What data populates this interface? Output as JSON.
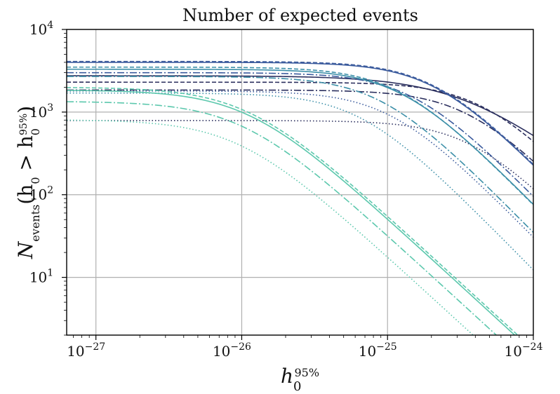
{
  "chart_data": {
    "type": "line",
    "title": "Number of expected events",
    "xscale": "log",
    "yscale": "log",
    "xlim": [
      6.3e-28,
      1e-24
    ],
    "ylim": [
      2,
      10000
    ],
    "xlabel": {
      "base": "h",
      "sub": "0",
      "sup": "95%"
    },
    "ylabel": {
      "prefix": "N",
      "sub": "events",
      "body": "(h",
      "sub2": "0",
      "gt": " > h",
      "sub3": "0",
      "sup3": "95%",
      "close": ")"
    },
    "xticks": [
      {
        "value": 1e-27,
        "base": "10",
        "exp": "−27"
      },
      {
        "value": 1e-26,
        "base": "10",
        "exp": "−26"
      },
      {
        "value": 1e-25,
        "base": "10",
        "exp": "−25"
      },
      {
        "value": 1e-24,
        "base": "10",
        "exp": "−24"
      }
    ],
    "yticks": [
      {
        "value": 10,
        "base": "10",
        "exp": "1"
      },
      {
        "value": 100,
        "base": "10",
        "exp": "2"
      },
      {
        "value": 1000,
        "base": "10",
        "exp": "3"
      },
      {
        "value": 10000,
        "base": "10",
        "exp": "4"
      }
    ],
    "grid": true,
    "series": [
      {
        "name": "a-solid",
        "style": "solid",
        "color": "#2b2f5e",
        "N": 2750,
        "h50": 3.4e-25,
        "slope": 1.35
      },
      {
        "name": "a-dashed",
        "style": "dashed",
        "color": "#2b2f5e",
        "N": 2300,
        "h50": 4.5e-25,
        "slope": 1.8
      },
      {
        "name": "a-dashdot",
        "style": "dashdot",
        "color": "#2b2f5e",
        "N": 1850,
        "h50": 3.6e-25,
        "slope": 1.8
      },
      {
        "name": "a-dotted",
        "style": "dotted",
        "color": "#2b2f5e",
        "N": 790,
        "h50": 3.8e-25,
        "slope": 1.8
      },
      {
        "name": "b-solid",
        "style": "solid",
        "color": "#3b5b9d",
        "N": 4000,
        "h50": 2.1e-25,
        "slope": 1.8
      },
      {
        "name": "b-dashed",
        "style": "dashed",
        "color": "#3b5b9d",
        "N": 4100,
        "h50": 2.1e-25,
        "slope": 1.8
      },
      {
        "name": "b-dashdot",
        "style": "dashdot",
        "color": "#3b5b9d",
        "N": 3000,
        "h50": 1.5e-25,
        "slope": 1.8
      },
      {
        "name": "b-dotted",
        "style": "dotted",
        "color": "#3b5b9d",
        "N": 1800,
        "h50": 1.05e-25,
        "slope": 1.8
      },
      {
        "name": "c-solid",
        "style": "solid",
        "color": "#3c8fa8",
        "N": 3300,
        "h50": 1.25e-25,
        "slope": 1.8
      },
      {
        "name": "c-dashed",
        "style": "dashed",
        "color": "#3c8fa8",
        "N": 3500,
        "h50": 1.2e-25,
        "slope": 1.8
      },
      {
        "name": "c-dashdot",
        "style": "dashdot",
        "color": "#3c8fa8",
        "N": 2700,
        "h50": 9e-26,
        "slope": 1.8
      },
      {
        "name": "c-dotted",
        "style": "dotted",
        "color": "#3c8fa8",
        "N": 1700,
        "h50": 6.5e-26,
        "slope": 1.8
      },
      {
        "name": "d-solid",
        "style": "solid",
        "color": "#5cc8ad",
        "N": 1850,
        "h50": 1.1e-26,
        "slope": 1.62
      },
      {
        "name": "d-dashed",
        "style": "dashed",
        "color": "#5cc8ad",
        "N": 2000,
        "h50": 1.1e-26,
        "slope": 1.62
      },
      {
        "name": "d-dashdot",
        "style": "dashdot",
        "color": "#5cc8ad",
        "N": 1350,
        "h50": 1e-26,
        "slope": 1.62
      },
      {
        "name": "d-dotted",
        "style": "dotted",
        "color": "#5cc8ad",
        "N": 810,
        "h50": 9.5e-27,
        "slope": 1.62
      }
    ]
  }
}
